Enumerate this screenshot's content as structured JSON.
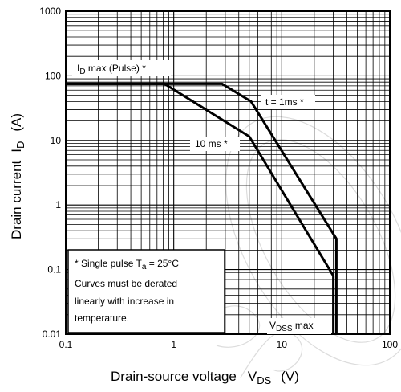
{
  "chart_data": {
    "type": "line",
    "title": "",
    "xlabel": {
      "text": "Drain-source voltage",
      "symbol": "V",
      "symbol_sub": "DS",
      "unit": "(V)"
    },
    "ylabel": {
      "text": "Drain current",
      "symbol": "I",
      "symbol_sub": "D",
      "unit": "(A)"
    },
    "x_scale": "log",
    "y_scale": "log",
    "xlim": [
      0.1,
      100
    ],
    "ylim": [
      0.01,
      1000
    ],
    "grid": true,
    "x_ticks": [
      "0.1",
      "1",
      "10",
      "100"
    ],
    "y_ticks": [
      "0.01",
      "0.1",
      "1",
      "10",
      "100",
      "1000"
    ],
    "series": [
      {
        "name": "t = 1ms *",
        "points": [
          [
            0.1,
            75
          ],
          [
            2.8,
            75
          ],
          [
            5.2,
            40
          ],
          [
            32,
            0.3
          ],
          [
            32,
            0.01
          ]
        ]
      },
      {
        "name": "10 ms *",
        "points": [
          [
            0.1,
            75
          ],
          [
            0.82,
            75
          ],
          [
            5.0,
            11.5
          ],
          [
            30,
            0.08
          ],
          [
            30,
            0.01
          ]
        ]
      }
    ],
    "annotations": {
      "id_max": {
        "main": "I",
        "sub": "D",
        "rest": " max (Pulse) *"
      },
      "t1ms": "t = 1ms *",
      "t10ms": "10 ms *",
      "vdss": {
        "main": "V",
        "sub": "DSS",
        "rest": " max"
      }
    },
    "note": {
      "line1_text": "* Single pulse T",
      "line1_sub": "a",
      "line1_rest": " = 25°C",
      "line2": "Curves must be derated",
      "line3": "linearly with increase in",
      "line4": "temperature."
    }
  }
}
